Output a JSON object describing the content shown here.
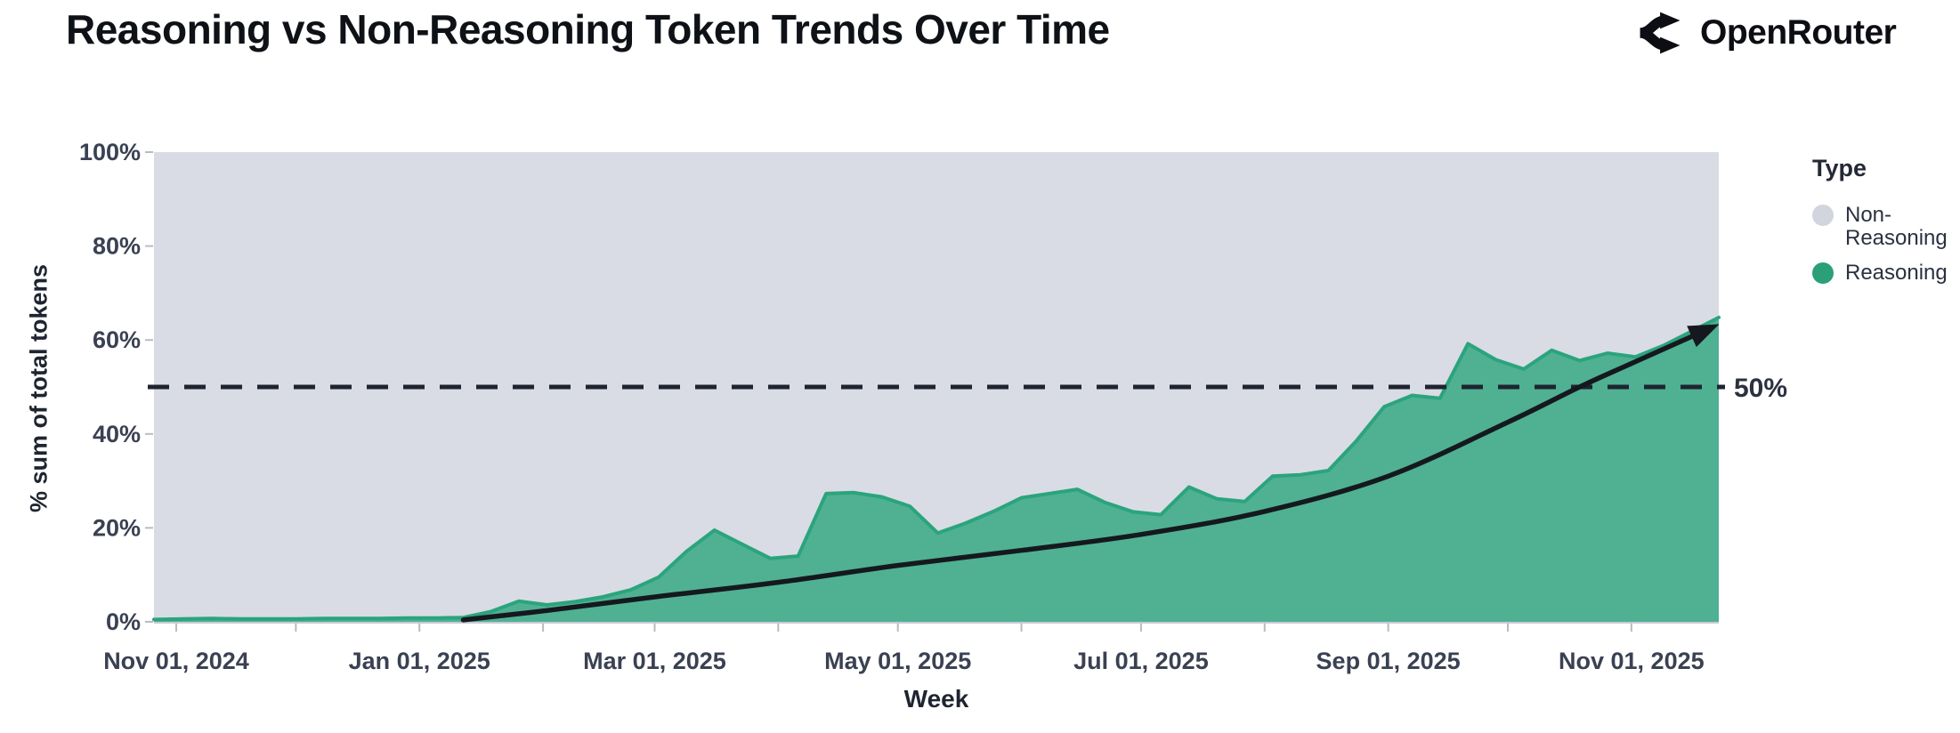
{
  "header": {
    "title": "Reasoning vs Non-Reasoning Token Trends Over Time",
    "brand": "OpenRouter"
  },
  "legend": {
    "title": "Type",
    "items": [
      {
        "label": "Non-Reasoning",
        "color": "#d1d5dd"
      },
      {
        "label": "Reasoning",
        "color": "#2b9f78"
      }
    ]
  },
  "chart_data": {
    "type": "area",
    "title": "Reasoning vs Non-Reasoning Token Trends Over Time",
    "xlabel": "Week",
    "ylabel": "% sum of total tokens",
    "ylim": [
      0,
      100
    ],
    "grid": false,
    "legend_position": "right",
    "plot_background": "#d9dce4",
    "y_ticks": [
      {
        "value": 0,
        "label": "0%"
      },
      {
        "value": 20,
        "label": "20%"
      },
      {
        "value": 40,
        "label": "40%"
      },
      {
        "value": 60,
        "label": "60%"
      },
      {
        "value": 80,
        "label": "80%"
      },
      {
        "value": 100,
        "label": "100%"
      }
    ],
    "x_tick_labels": [
      {
        "date": "2024-11-01",
        "label": "Nov 01, 2024"
      },
      {
        "date": "2025-01-01",
        "label": "Jan 01, 2025"
      },
      {
        "date": "2025-03-01",
        "label": "Mar 01, 2025"
      },
      {
        "date": "2025-05-01",
        "label": "May 01, 2025"
      },
      {
        "date": "2025-07-01",
        "label": "Jul 01, 2025"
      },
      {
        "date": "2025-09-01",
        "label": "Sep 01, 2025"
      },
      {
        "date": "2025-11-01",
        "label": "Nov 01, 2025"
      }
    ],
    "month_ticks": [
      "2024-11-01",
      "2024-12-01",
      "2025-01-01",
      "2025-02-01",
      "2025-03-01",
      "2025-04-01",
      "2025-05-01",
      "2025-06-01",
      "2025-07-01",
      "2025-08-01",
      "2025-09-01",
      "2025-10-01",
      "2025-11-01"
    ],
    "series": [
      {
        "name": "Reasoning",
        "fill_color": "#4fb192",
        "line_color": "#2ba47d",
        "x": [
          "2024-10-27",
          "2024-11-03",
          "2024-11-10",
          "2024-11-17",
          "2024-11-24",
          "2024-12-01",
          "2024-12-08",
          "2024-12-15",
          "2024-12-22",
          "2024-12-29",
          "2025-01-05",
          "2025-01-12",
          "2025-01-19",
          "2025-01-26",
          "2025-02-02",
          "2025-02-09",
          "2025-02-16",
          "2025-02-23",
          "2025-03-02",
          "2025-03-09",
          "2025-03-16",
          "2025-03-23",
          "2025-03-30",
          "2025-04-06",
          "2025-04-13",
          "2025-04-20",
          "2025-04-27",
          "2025-05-04",
          "2025-05-11",
          "2025-05-18",
          "2025-05-25",
          "2025-06-01",
          "2025-06-08",
          "2025-06-15",
          "2025-06-22",
          "2025-06-29",
          "2025-07-06",
          "2025-07-13",
          "2025-07-20",
          "2025-07-27",
          "2025-08-03",
          "2025-08-10",
          "2025-08-17",
          "2025-08-24",
          "2025-08-31",
          "2025-09-07",
          "2025-09-14",
          "2025-09-21",
          "2025-09-28",
          "2025-10-05",
          "2025-10-12",
          "2025-10-19",
          "2025-10-26",
          "2025-11-02",
          "2025-11-09",
          "2025-11-16",
          "2025-11-23"
        ],
        "values": [
          0.5,
          0.6,
          0.7,
          0.6,
          0.6,
          0.6,
          0.7,
          0.7,
          0.7,
          0.8,
          0.8,
          0.9,
          2.2,
          4.4,
          3.6,
          4.3,
          5.3,
          6.8,
          9.5,
          15.0,
          19.5,
          16.5,
          13.5,
          14.0,
          27.3,
          27.5,
          26.6,
          24.6,
          18.9,
          21.0,
          23.5,
          26.4,
          27.3,
          28.2,
          25.4,
          23.4,
          22.8,
          28.7,
          26.2,
          25.6,
          31.0,
          31.3,
          32.2,
          38.5,
          45.8,
          48.2,
          47.6,
          59.2,
          55.8,
          53.8,
          57.8,
          55.6,
          57.2,
          56.4,
          58.8,
          61.8,
          64.8
        ]
      },
      {
        "name": "Non-Reasoning",
        "fill_color": "#d9dce4",
        "note": "Occupies the remainder of the stacked area: value = 100 - Reasoning for every week"
      }
    ],
    "reference_line": {
      "value": 50,
      "label": "50%",
      "style": "dashed",
      "color": "#1f2430"
    },
    "trend_arrow": {
      "color": "#15191f",
      "points": [
        [
          "2025-01-12",
          0.4
        ],
        [
          "2025-02-02",
          2.4
        ],
        [
          "2025-03-02",
          5.4
        ],
        [
          "2025-04-01",
          8.4
        ],
        [
          "2025-05-01",
          12.0
        ],
        [
          "2025-06-01",
          15.2
        ],
        [
          "2025-07-01",
          18.6
        ],
        [
          "2025-08-01",
          23.5
        ],
        [
          "2025-09-01",
          31.0
        ],
        [
          "2025-10-01",
          42.5
        ],
        [
          "2025-10-19",
          50.0
        ],
        [
          "2025-11-01",
          55.0
        ],
        [
          "2025-11-21",
          62.6
        ]
      ]
    }
  }
}
